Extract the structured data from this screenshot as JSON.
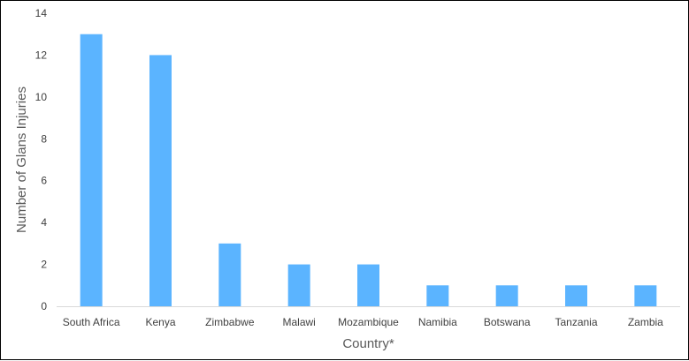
{
  "chart_data": {
    "type": "bar",
    "categories": [
      "South Africa",
      "Kenya",
      "Zimbabwe",
      "Malawi",
      "Mozambique",
      "Namibia",
      "Botswana",
      "Tanzania",
      "Zambia"
    ],
    "values": [
      13,
      12,
      3,
      2,
      2,
      1,
      1,
      1,
      1
    ],
    "xlabel": "Country*",
    "ylabel": "Number of Glans Injuries",
    "ylim": [
      0,
      14
    ],
    "yticks": [
      0,
      2,
      4,
      6,
      8,
      10,
      12,
      14
    ],
    "grid": false,
    "legend": "none",
    "bar_color": "#5BB4FF",
    "axis_color": "#D9D9D9"
  }
}
